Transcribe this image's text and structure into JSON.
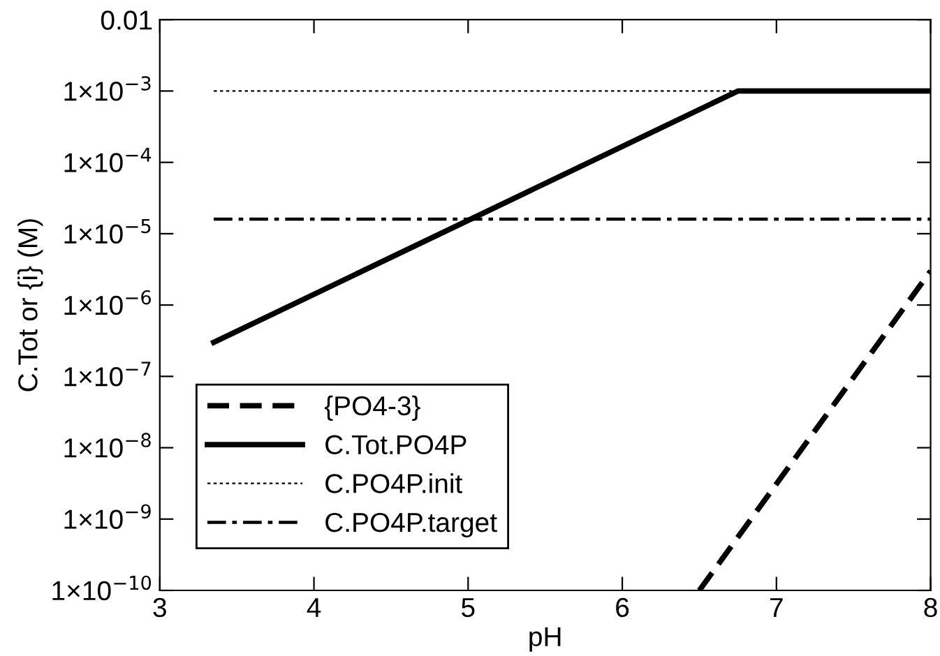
{
  "chart_data": {
    "type": "line",
    "xlabel": "pH",
    "ylabel": "C.Tot or {i} (M)",
    "log": "y",
    "xlim": [
      3,
      8
    ],
    "xticks": [
      3,
      4,
      5,
      6,
      7,
      8
    ],
    "ylim": [
      1e-10,
      0.01
    ],
    "yticks": [
      {
        "value": 1e-10,
        "label": "1×10$^{−10}$"
      },
      {
        "value": 1e-09,
        "label": "1×10$^{−9}$"
      },
      {
        "value": 1e-08,
        "label": "1×10$^{−8}$"
      },
      {
        "value": 1e-07,
        "label": "1×10$^{−7}$"
      },
      {
        "value": 1e-06,
        "label": "1×10$^{−6}$"
      },
      {
        "value": 1e-05,
        "label": "1×10$^{−5}$"
      },
      {
        "value": 0.0001,
        "label": "1×10$^{−4}$"
      },
      {
        "value": 0.001,
        "label": "1×10$^{−3}$"
      },
      {
        "value": 0.01,
        "label": "0.01"
      }
    ],
    "legend": "bottom left",
    "grid": false,
    "marker": "none",
    "series": [
      {
        "name": "{PO4-3}",
        "color": "#000000",
        "line_style": "dashed",
        "x": [
          6.5,
          8
        ],
        "values": [
          1e-10,
          3e-06
        ]
      },
      {
        "name": "C.Tot.PO4P",
        "color": "#000000",
        "line_style": "solid",
        "x": [
          3.35,
          6.75,
          8
        ],
        "values": [
          3e-07,
          0.001,
          0.001
        ]
      },
      {
        "name": "C.PO4P.init",
        "color": "#000000",
        "line_style": "dotted",
        "x": [
          3.35,
          6.75
        ],
        "values": [
          0.001,
          0.001
        ]
      },
      {
        "name": "C.PO4P.target",
        "color": "#000000",
        "line_style": "dashdot",
        "x": [
          3.35,
          8
        ],
        "values": [
          1.6e-05,
          1.6e-05
        ]
      }
    ]
  }
}
